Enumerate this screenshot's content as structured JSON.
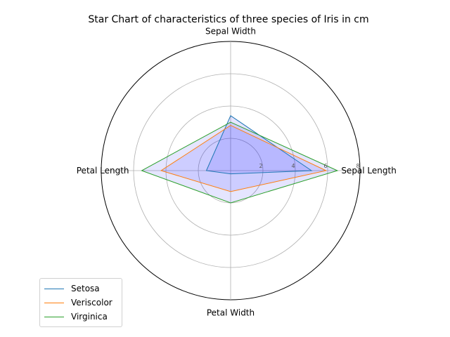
{
  "chart_data": {
    "type": "radar",
    "title": "Star Chart of characteristics of three species of Iris in cm",
    "axes": [
      "Sepal Length",
      "Sepal Width",
      "Petal Length",
      "Petal Width"
    ],
    "rlim": [
      0,
      8
    ],
    "rticks": [
      2,
      4,
      6,
      8
    ],
    "grid": true,
    "legend_position": "lower-left",
    "fill_color": "#0000ff",
    "fill_opacity": 0.1,
    "series": [
      {
        "name": "Setosa",
        "color": "#1f77b4",
        "values": [
          5.0,
          3.4,
          1.5,
          0.2
        ]
      },
      {
        "name": "Veriscolor",
        "color": "#ff7f0e",
        "values": [
          5.9,
          2.8,
          4.3,
          1.3
        ]
      },
      {
        "name": "Virginica",
        "color": "#2ca02c",
        "values": [
          6.6,
          3.0,
          5.5,
          2.0
        ]
      }
    ]
  }
}
